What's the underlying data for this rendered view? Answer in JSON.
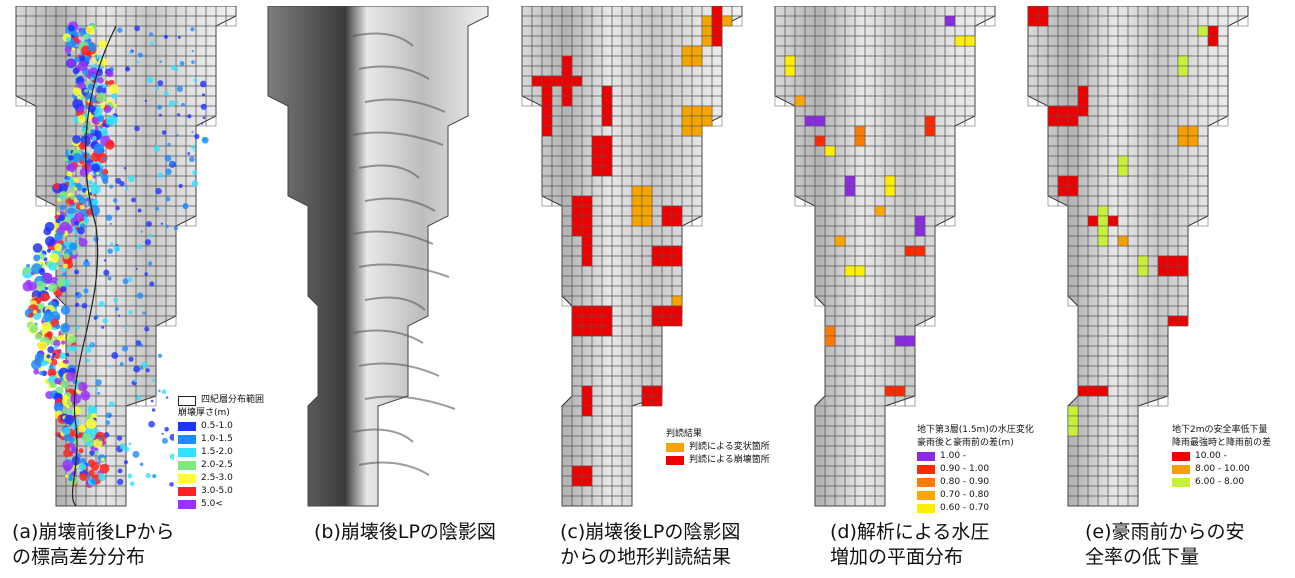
{
  "panels": [
    {
      "caption_line1": "(a)崩壊前後LPから",
      "caption_line2": "の標高差分分布",
      "legend": {
        "outline_label": "四紀層分布範囲",
        "title": "崩壊厚さ(m)",
        "items": [
          {
            "label": "0.5-1.0",
            "color": "#1f33ff"
          },
          {
            "label": "1.0-1.5",
            "color": "#1c8cff"
          },
          {
            "label": "1.5-2.0",
            "color": "#33e0ff"
          },
          {
            "label": "2.0-2.5",
            "color": "#7fe87f"
          },
          {
            "label": "2.5-3.0",
            "color": "#ffff33"
          },
          {
            "label": "3.0-5.0",
            "color": "#ff2222"
          },
          {
            "label": "5.0<",
            "color": "#9933ff"
          }
        ]
      }
    },
    {
      "caption_line1": "(b)崩壊後LPの陰影図",
      "caption_line2": ""
    },
    {
      "caption_line1": "(c)崩壊後LPの陰影図",
      "caption_line2": "からの地形判読結果",
      "legend": {
        "title": "判読結果",
        "items": [
          {
            "label": "判読による変状箇所",
            "color": "#f5a400"
          },
          {
            "label": "判読による崩壊箇所",
            "color": "#ee0000"
          }
        ]
      }
    },
    {
      "caption_line1": "(d)解析による水圧",
      "caption_line2": "増加の平面分布",
      "legend": {
        "title": "地下第3層(1.5m)の水圧変化",
        "title2": "豪雨後と豪雨前の差(m)",
        "items": [
          {
            "label": "1.00 -",
            "color": "#8a2be2"
          },
          {
            "label": "0.90 - 1.00",
            "color": "#ff2a00"
          },
          {
            "label": "0.80 - 0.90",
            "color": "#ff7a00"
          },
          {
            "label": "0.70 - 0.80",
            "color": "#ffa500"
          },
          {
            "label": "0.60 - 0.70",
            "color": "#ffee00"
          }
        ]
      }
    },
    {
      "caption_line1": "(e)豪雨前からの安",
      "caption_line2": "全率の低下量",
      "legend": {
        "title": "地下2mの安全率低下量",
        "title2": "降雨最強時と降雨前の差",
        "items": [
          {
            "label": "10.00 -",
            "color": "#ee0000"
          },
          {
            "label": "8.00 - 10.00",
            "color": "#f5a000"
          },
          {
            "label": "6.00 - 8.00",
            "color": "#c8f03a"
          }
        ]
      }
    }
  ]
}
